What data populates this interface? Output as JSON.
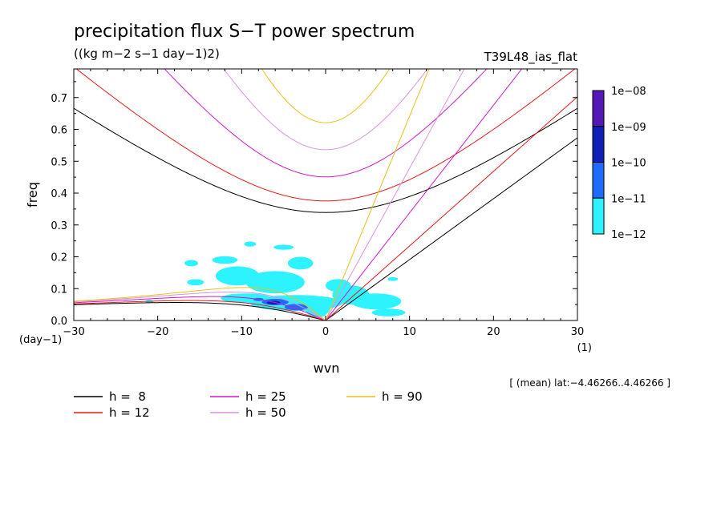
{
  "chart_data": {
    "type": "heatmap",
    "title": "precipitation flux S−T power spectrum",
    "subtitle": "((kg m−2 s−1 day−1)2)",
    "experiment": "T39L48_ias_flat",
    "xlabel": "wvn",
    "x_unit": "(1)",
    "ylabel": "freq",
    "y_unit": "(day−1)",
    "xlim": [
      -30,
      30
    ],
    "ylim": [
      0,
      0.79
    ],
    "x_ticks": [
      -30,
      -20,
      -10,
      0,
      10,
      20,
      30
    ],
    "x_tick_labels": [
      "−30",
      "−20",
      "−10",
      "0",
      "10",
      "20",
      "30"
    ],
    "y_ticks": [
      0,
      0.1,
      0.2,
      0.3,
      0.4,
      0.5,
      0.6,
      0.7
    ],
    "y_tick_labels": [
      "0.0",
      "0.1",
      "0.2",
      "0.3",
      "0.4",
      "0.5",
      "0.6",
      "0.7"
    ],
    "note": "[ (mean) lat:−4.46266..4.46266 ]",
    "colorbar": {
      "labels": [
        "1e−08",
        "1e−09",
        "1e−10",
        "1e−11",
        "1e−12"
      ],
      "colors": [
        "#5418b6",
        "#0f1fb7",
        "#1f6bff",
        "#2cf3ff"
      ]
    },
    "contour_patches": [
      {
        "level": 0,
        "cx": -12,
        "cy": 0.19,
        "rx": 1.5,
        "ry": 0.012
      },
      {
        "level": 0,
        "cx": -16,
        "cy": 0.18,
        "rx": 0.8,
        "ry": 0.01
      },
      {
        "level": 0,
        "cx": -15.5,
        "cy": 0.12,
        "rx": 1.0,
        "ry": 0.01
      },
      {
        "level": 0,
        "cx": -9,
        "cy": 0.24,
        "rx": 0.7,
        "ry": 0.008
      },
      {
        "level": 0,
        "cx": -5,
        "cy": 0.23,
        "rx": 1.2,
        "ry": 0.008
      },
      {
        "level": 0,
        "cx": -10.5,
        "cy": 0.14,
        "rx": 2.6,
        "ry": 0.03
      },
      {
        "level": 0,
        "cx": -6,
        "cy": 0.12,
        "rx": 3.5,
        "ry": 0.035
      },
      {
        "level": 0,
        "cx": -3,
        "cy": 0.18,
        "rx": 1.5,
        "ry": 0.02
      },
      {
        "level": 0,
        "cx": -3.5,
        "cy": 0.055,
        "rx": 5.5,
        "ry": 0.025
      },
      {
        "level": 0,
        "cx": -1,
        "cy": 0.04,
        "rx": 1.5,
        "ry": 0.03
      },
      {
        "level": 0,
        "cx": 1.5,
        "cy": 0.11,
        "rx": 1.5,
        "ry": 0.02
      },
      {
        "level": 0,
        "cx": 3,
        "cy": 0.08,
        "rx": 2.2,
        "ry": 0.03
      },
      {
        "level": 0,
        "cx": 6,
        "cy": 0.06,
        "rx": 3.0,
        "ry": 0.025
      },
      {
        "level": 0,
        "cx": 7.5,
        "cy": 0.025,
        "rx": 2.0,
        "ry": 0.012
      },
      {
        "level": 0,
        "cx": 8,
        "cy": 0.13,
        "rx": 0.6,
        "ry": 0.006
      },
      {
        "level": 0,
        "cx": -21,
        "cy": 0.06,
        "rx": 0.5,
        "ry": 0.005
      },
      {
        "level": 0,
        "cx": -9.5,
        "cy": 0.07,
        "rx": 3,
        "ry": 0.015
      },
      {
        "level": 1,
        "cx": -6,
        "cy": 0.058,
        "rx": 1.6,
        "ry": 0.01
      },
      {
        "level": 1,
        "cx": -3.5,
        "cy": 0.042,
        "rx": 1.4,
        "ry": 0.01
      },
      {
        "level": 1,
        "cx": -8,
        "cy": 0.066,
        "rx": 0.6,
        "ry": 0.005
      },
      {
        "level": 2,
        "cx": -6.2,
        "cy": 0.056,
        "rx": 0.8,
        "ry": 0.006
      }
    ],
    "dispersion_curves": [
      {
        "label": "h =  8",
        "h": 8,
        "color": "#000000"
      },
      {
        "label": "h = 12",
        "h": 12,
        "color": "#e8191a"
      },
      {
        "label": "h = 25",
        "h": 25,
        "color": "#d418c6"
      },
      {
        "label": "h = 50",
        "h": 50,
        "color": "#db94db"
      },
      {
        "label": "h = 90",
        "h": 90,
        "color": "#e8c21a"
      }
    ]
  }
}
